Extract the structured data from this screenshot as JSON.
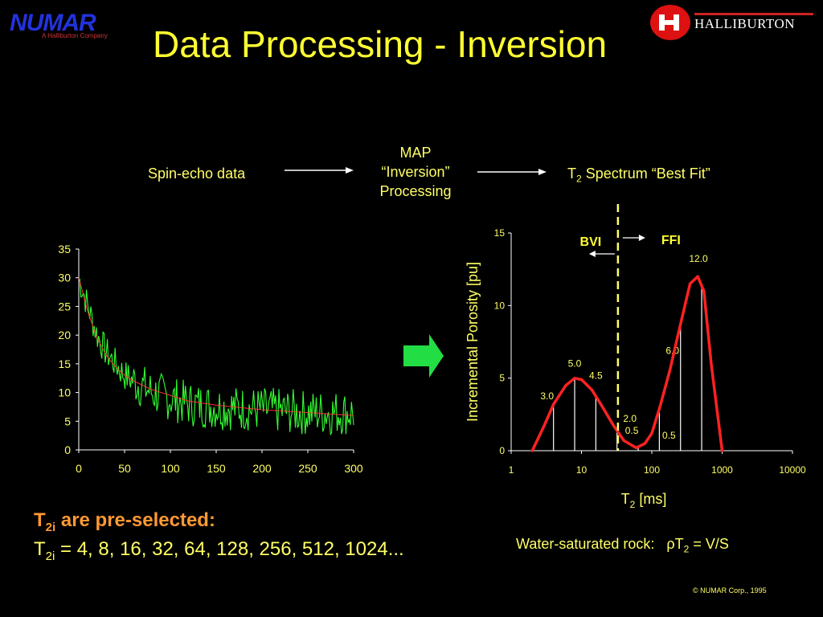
{
  "header": {
    "title": "Data Processing - Inversion",
    "numar_logo": "NUMAR",
    "numar_sub": "A Halliburton Company",
    "halliburton": "HALLIBURTON"
  },
  "flow": {
    "input": "Spin-echo data",
    "process_line1": "MAP",
    "process_line2": "“Inversion”",
    "process_line3": "Processing",
    "output_prefix": "T",
    "output_sub": "2",
    "output_rest": " Spectrum “Best Fit”"
  },
  "notes": {
    "line1_prefix": "T",
    "line1_sub": "2i",
    "line1_rest": " are pre-selected:",
    "line2_prefix": "T",
    "line2_sub": "2i",
    "line2_rest": " = 4, 8, 16, 32, 64, 128, 256, 512, 1024..."
  },
  "water": {
    "label": "Water-saturated rock:",
    "rho": "ρT",
    "sub": "2",
    "eq": " =  V/S"
  },
  "copyright": "© NUMAR Corp., 1995",
  "colors": {
    "background": "#000000",
    "text": "#ffff66",
    "orange": "#ff9933",
    "noisy_series": "#33ff33",
    "fit_series": "#ff3333",
    "spectrum": "#ff2222",
    "arrow": "#22dd44"
  },
  "chart_data": [
    {
      "type": "line",
      "title": "",
      "xlabel": "",
      "ylabel": "",
      "xlim": [
        0,
        300
      ],
      "ylim": [
        0,
        35
      ],
      "x_ticks": [
        "0",
        "50",
        "100",
        "150",
        "200",
        "250",
        "300"
      ],
      "y_ticks": [
        "0",
        "5",
        "10",
        "15",
        "20",
        "25",
        "30",
        "35"
      ],
      "series": [
        {
          "kind": "noisy-echo-data",
          "x": [
            0,
            10,
            20,
            30,
            40,
            50,
            60,
            80,
            100,
            120,
            150,
            200,
            250,
            300
          ],
          "y": [
            30,
            25,
            20,
            17,
            15,
            13,
            12,
            10,
            9,
            8,
            7.5,
            7,
            6.5,
            6.5
          ]
        },
        {
          "kind": "fit",
          "x": [
            0,
            10,
            20,
            30,
            40,
            50,
            60,
            80,
            100,
            120,
            150,
            200,
            250,
            300
          ],
          "y": [
            30,
            24,
            19.5,
            16.5,
            14.5,
            13,
            12,
            10.5,
            9.5,
            8.5,
            7.8,
            7,
            6.5,
            6
          ]
        }
      ]
    },
    {
      "type": "line",
      "title": "",
      "xlabel_prefix": "T",
      "xlabel_sub": "2",
      "xlabel_rest": " [ms]",
      "ylabel": "Incremental Porosity [pu]",
      "xscale": "log",
      "xlim": [
        1,
        10000
      ],
      "ylim": [
        0,
        15
      ],
      "x_ticks": [
        "1",
        "10",
        "100",
        "1000",
        "10000"
      ],
      "y_ticks": [
        "0",
        "5",
        "10",
        "15"
      ],
      "curve": {
        "x": [
          2,
          3,
          4,
          6,
          8,
          10,
          14,
          20,
          28,
          40,
          60,
          80,
          100,
          130,
          180,
          250,
          350,
          450,
          550,
          700,
          1000
        ],
        "y": [
          0,
          1.8,
          3.2,
          4.5,
          5.0,
          4.9,
          4.2,
          3.0,
          1.8,
          0.7,
          0.2,
          0.5,
          1.2,
          3,
          5.5,
          8.5,
          11.5,
          12.0,
          11,
          6,
          0
        ]
      },
      "bins": [
        {
          "t2": 4,
          "value": 3.0,
          "label": "3.0"
        },
        {
          "t2": 8,
          "value": 5.0,
          "label": "5.0"
        },
        {
          "t2": 16,
          "value": 4.5,
          "label": "4.5"
        },
        {
          "t2": 32,
          "value": 2.0,
          "label": "2.0"
        },
        {
          "t2": 64,
          "value": 0.5,
          "label": "0.5"
        },
        {
          "t2": 128,
          "value": 0.5,
          "label": "0.5"
        },
        {
          "t2": 256,
          "value": 6.0,
          "label": "6.0"
        },
        {
          "t2": 512,
          "value": 12.0,
          "label": "12.0"
        }
      ],
      "cutoff_t2": 33,
      "bvi_label": "BVI",
      "ffi_label": "FFI"
    }
  ]
}
